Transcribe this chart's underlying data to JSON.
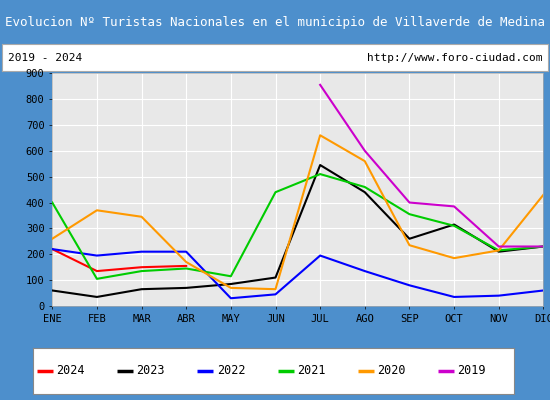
{
  "title": "Evolucion Nº Turistas Nacionales en el municipio de Villaverde de Medina",
  "subtitle_left": "2019 - 2024",
  "subtitle_right": "http://www.foro-ciudad.com",
  "title_bg_color": "#4d8fcc",
  "title_text_color": "#ffffff",
  "subtitle_bg_color": "#ffffff",
  "plot_bg_color": "#e8e8e8",
  "outer_bg_color": "#ffffff",
  "months": [
    "ENE",
    "FEB",
    "MAR",
    "ABR",
    "MAY",
    "JUN",
    "JUL",
    "AGO",
    "SEP",
    "OCT",
    "NOV",
    "DIC"
  ],
  "ylim": [
    0,
    900
  ],
  "yticks": [
    0,
    100,
    200,
    300,
    400,
    500,
    600,
    700,
    800,
    900
  ],
  "series": {
    "2024": {
      "color": "#ff0000",
      "data": [
        220,
        135,
        150,
        155,
        null,
        null,
        null,
        null,
        null,
        null,
        null,
        null
      ]
    },
    "2023": {
      "color": "#000000",
      "data": [
        60,
        35,
        65,
        70,
        85,
        110,
        545,
        440,
        260,
        315,
        210,
        230
      ]
    },
    "2022": {
      "color": "#0000ff",
      "data": [
        220,
        195,
        210,
        210,
        30,
        45,
        195,
        135,
        80,
        35,
        40,
        60
      ]
    },
    "2021": {
      "color": "#00cc00",
      "data": [
        400,
        105,
        135,
        145,
        115,
        440,
        510,
        460,
        355,
        310,
        215,
        230
      ]
    },
    "2020": {
      "color": "#ff9900",
      "data": [
        260,
        370,
        345,
        170,
        70,
        65,
        660,
        560,
        235,
        185,
        215,
        430
      ]
    },
    "2019": {
      "color": "#cc00cc",
      "data": [
        null,
        null,
        null,
        null,
        null,
        null,
        855,
        600,
        400,
        385,
        230,
        230
      ]
    }
  },
  "legend_order": [
    "2024",
    "2023",
    "2022",
    "2021",
    "2020",
    "2019"
  ],
  "border_color": "#4d8fcc",
  "border_linewidth": 2.0
}
